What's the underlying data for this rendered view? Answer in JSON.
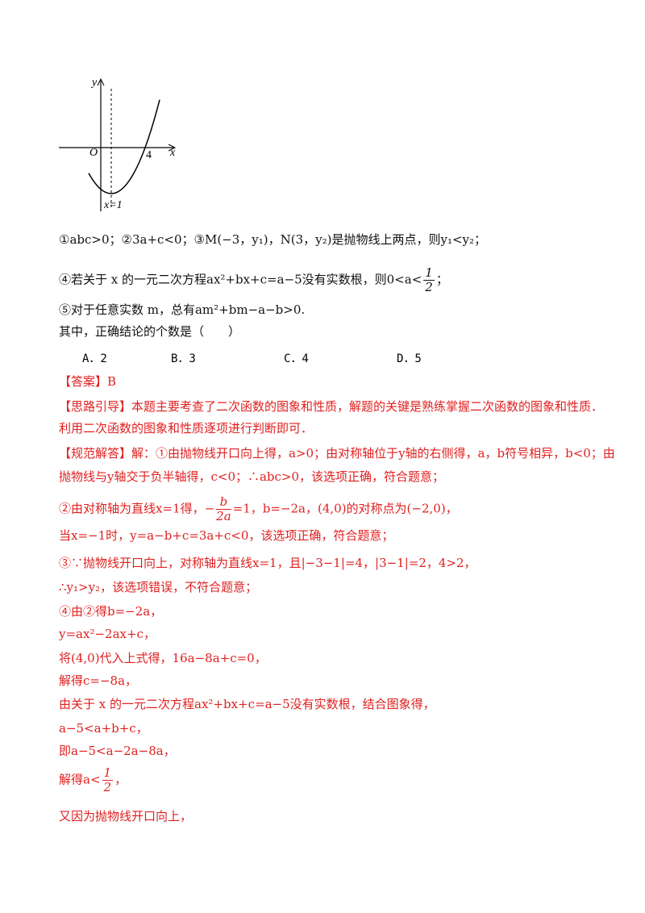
{
  "figure": {
    "y_label": "y",
    "origin": "O",
    "x_label": "x",
    "x_tick": "4",
    "axis_label": "x=1"
  },
  "question": {
    "lines": [
      "①abc>0；②3a+c<0；③M(−3，y₁)，N(3，y₂)是抛物线上两点，则y₁<y₂；",
      {
        "before": "④若关于 x 的一元二次方程ax²+bx+c=a−5没有实数根，则0<a<",
        "numerator": "1",
        "denominator": "2",
        "after": "；"
      },
      "⑤对于任意实数 m，总有am²+bm−a−b>0.",
      "其中，正确结论的个数是（　　）"
    ],
    "options": [
      "A．2",
      "B．3",
      "C．4",
      "D．5"
    ]
  },
  "answer": {
    "label": "【答案】",
    "value": "B"
  },
  "hint": {
    "label": "【思路引导】",
    "lines": [
      "本题主要考查了二次函数的图象和性质，解题的关键是熟练掌握二次函数的图象和性质．",
      "利用二次函数的图象和性质逐项进行判断即可．"
    ]
  },
  "solution": {
    "label": "【规范解答】",
    "lines": [
      "解：①由抛物线开口向上得，a>0；由对称轴位于y轴的右侧得，a，b符号相异，b<0；由",
      "抛物线与y轴交于负半轴得，c<0；∴abc>0，该选项正确，符合题意；",
      {
        "before": "②由对称轴为直线x=1得，−",
        "numerator": "b",
        "denominator": "2a",
        "after": "=1，b=−2a，(4,0)的对称点为(−2,0)，"
      },
      "当x=−1时，y=a−b+c=3a+c<0，该选项正确，符合题意；",
      "③∵抛物线开口向上，对称轴为直线x=1，且|−3−1|=4，|3−1|=2，4>2，",
      "∴y₁>y₂，该选项错误，不符合题意；",
      "④由②得b=−2a，",
      "y=ax²−2ax+c，",
      "将(4,0)代入上式得，16a−8a+c=0，",
      "解得c=−8a，",
      "由关于 x 的一元二次方程ax²+bx+c=a−5没有实数根，结合图象得，",
      "a−5<a+b+c，",
      "即a−5<a−2a−8a，",
      {
        "before": "解得a<",
        "numerator": "1",
        "denominator": "2",
        "after": "，"
      },
      "又因为抛物线开口向上，"
    ]
  }
}
